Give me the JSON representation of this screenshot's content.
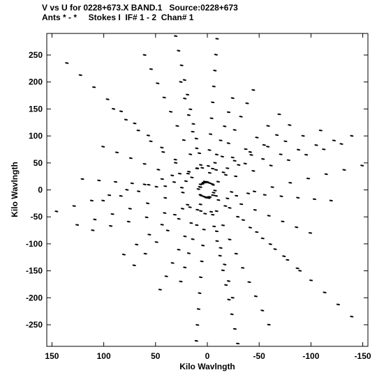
{
  "header": {
    "line1": "V vs U for 0228+673.X BAND.1   Source:0228+673",
    "line2": "Ants * - *     Stokes I  IF# 1 - 2  Chan# 1"
  },
  "chart_data": {
    "type": "scatter",
    "title": "V vs U for 0228+673.X BAND.1   Source:0228+673",
    "subtitle": "Ants * - *     Stokes I  IF# 1 - 2  Chan# 1",
    "xlabel": "Kilo Wavlngth",
    "ylabel": "Kilo Wavlngth",
    "xlim": [
      155,
      -155
    ],
    "ylim": [
      -290,
      290
    ],
    "x_reversed": true,
    "xticks": [
      150,
      100,
      50,
      0,
      -50,
      -100,
      -150
    ],
    "yticks": [
      250,
      200,
      150,
      100,
      50,
      0,
      -50,
      -100,
      -150,
      -200,
      -250
    ],
    "grid": false,
    "marker_color": "#000000",
    "tracks": [
      {
        "u_start": 145,
        "v_start": -40,
        "u_end": -110,
        "v_end": 110,
        "n": 16
      },
      {
        "u_start": 125,
        "v_start": -65,
        "u_end": -130,
        "v_end": 85,
        "n": 16
      },
      {
        "u_start": 110,
        "v_start": -75,
        "u_end": -150,
        "v_end": 45,
        "n": 16
      },
      {
        "u_start": 100,
        "v_start": -20,
        "u_end": -140,
        "v_end": 100,
        "n": 15
      },
      {
        "u_start": 135,
        "v_start": 235,
        "u_end": -140,
        "v_end": -235,
        "n": 22
      },
      {
        "u_start": 90,
        "v_start": 150,
        "u_end": -90,
        "v_end": -150,
        "n": 16
      },
      {
        "u_start": 120,
        "v_start": 20,
        "u_end": -120,
        "v_end": -20,
        "n": 16
      },
      {
        "u_start": 30,
        "v_start": 285,
        "u_end": -30,
        "v_end": -285,
        "n": 22
      },
      {
        "u_start": 60,
        "v_start": 250,
        "u_end": -60,
        "v_end": -250,
        "n": 20
      },
      {
        "u_start": -10,
        "v_start": 280,
        "u_end": 10,
        "v_end": -280,
        "n": 20
      },
      {
        "u_start": -25,
        "v_start": 170,
        "u_end": 25,
        "v_end": -170,
        "n": 14
      },
      {
        "u_start": 100,
        "v_start": 80,
        "u_end": -100,
        "v_end": -80,
        "n": 16
      },
      {
        "u_start": 80,
        "v_start": -120,
        "u_end": -80,
        "v_end": 120,
        "n": 14
      },
      {
        "u_start": 45,
        "v_start": -185,
        "u_end": -45,
        "v_end": 185,
        "n": 16
      },
      {
        "u_start": 25,
        "v_start": 200,
        "u_end": -25,
        "v_end": -200,
        "n": 14
      },
      {
        "u_start": -70,
        "v_start": 140,
        "u_end": 70,
        "v_end": -140,
        "n": 14
      }
    ]
  }
}
